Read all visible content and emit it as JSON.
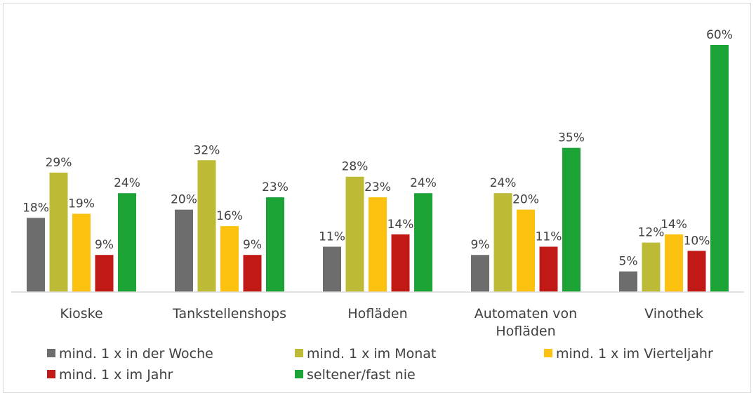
{
  "chart_data": {
    "type": "bar",
    "categories": [
      [
        "Kioske"
      ],
      [
        "Tankstellenshops"
      ],
      [
        "Hofläden"
      ],
      [
        "Automaten von",
        "Hofläden"
      ],
      [
        "Vinothek"
      ]
    ],
    "series": [
      {
        "name": "mind. 1 x in der Woche",
        "color": "#6d6d6d",
        "values": [
          18,
          20,
          11,
          9,
          5
        ],
        "labels": [
          "18%",
          "20%",
          "11%",
          "9%",
          "5%"
        ]
      },
      {
        "name": "mind. 1 x im Monat",
        "color": "#bdbb35",
        "values": [
          29,
          32,
          28,
          24,
          12
        ],
        "labels": [
          "29%",
          "32%",
          "28%",
          "24%",
          "12%"
        ]
      },
      {
        "name": "mind. 1 x im Vierteljahr",
        "color": "#fcc20f",
        "values": [
          19,
          16,
          23,
          20,
          14
        ],
        "labels": [
          "19%",
          "16%",
          "23%",
          "20%",
          "14%"
        ]
      },
      {
        "name": "mind. 1 x im Jahr",
        "color": "#c11a16",
        "values": [
          9,
          9,
          14,
          11,
          10
        ],
        "labels": [
          "9%",
          "9%",
          "14%",
          "11%",
          "10%"
        ]
      },
      {
        "name": "seltener/fast nie",
        "color": "#1ba336",
        "values": [
          24,
          23,
          24,
          35,
          60
        ],
        "labels": [
          "24%",
          "23%",
          "24%",
          "35%",
          "60%"
        ]
      }
    ],
    "ylim": [
      0,
      60
    ],
    "legend_position": "bottom",
    "grid": false
  }
}
